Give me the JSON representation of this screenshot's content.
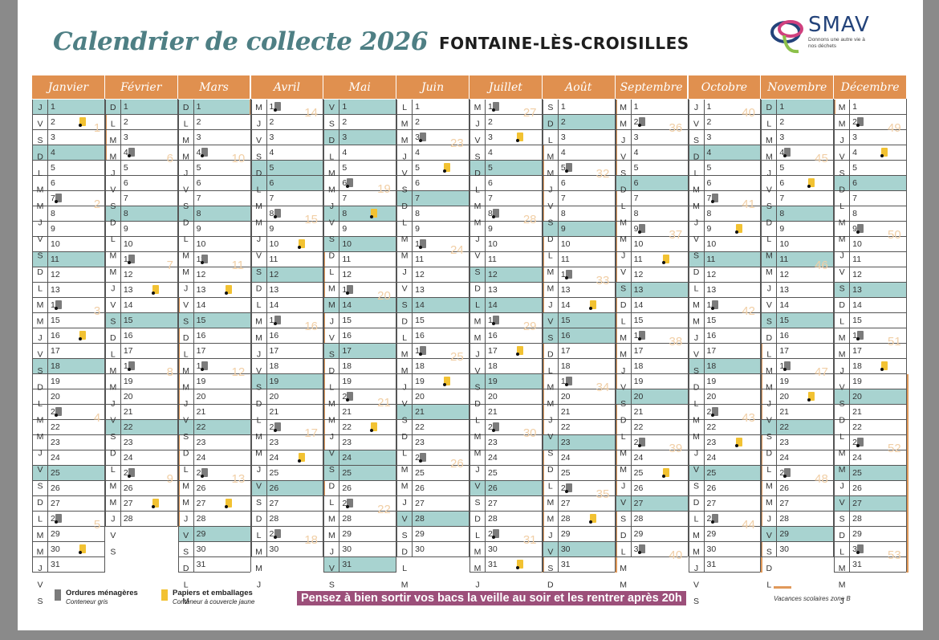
{
  "header": {
    "title": "Calendrier de collecte 2026",
    "town": "FONTAINE-LÈS-CROISILLES"
  },
  "logo": {
    "name": "SMAV",
    "tagline": "Donnons une autre vie à nos déchets"
  },
  "colors": {
    "header": "#e0904f",
    "holiday": "#a8d3d0",
    "vacation": "#e0995a",
    "banner": "#9c4f7a"
  },
  "months": [
    {
      "name": "Janvier",
      "wd": "JVSDLMMJVSDLMMJVSDLMMJVSDLMMJVS",
      "holidays": [
        1
      ],
      "gray": [
        7,
        14,
        21,
        28
      ],
      "yellow": [
        2,
        16,
        30
      ],
      "vac": [
        1,
        2,
        3,
        4
      ],
      "weeks": [
        [
          2,
          1
        ],
        [
          7,
          2
        ],
        [
          14,
          3
        ],
        [
          21,
          4
        ],
        [
          28,
          5
        ]
      ]
    },
    {
      "name": "Février",
      "wd": "DLMMJVSDLMMJVSDLMMJVSDLMMJVS",
      "holidays": [],
      "gray": [
        4,
        11,
        18,
        25
      ],
      "yellow": [
        13,
        27
      ],
      "vac": [
        14,
        15,
        16,
        17,
        18,
        19,
        20,
        21,
        22,
        23,
        24,
        25,
        26,
        27,
        28
      ],
      "weeks": [
        [
          4,
          6
        ],
        [
          11,
          7
        ],
        [
          18,
          8
        ],
        [
          25,
          9
        ]
      ]
    },
    {
      "name": "Mars",
      "wd": "DLMMJVSDLMMJVSDLMMJVSDLMMJVSDLM",
      "holidays": [],
      "gray": [
        4,
        11,
        18,
        25
      ],
      "yellow": [
        13,
        27
      ],
      "vac": [
        1
      ],
      "weeks": [
        [
          4,
          10
        ],
        [
          11,
          11
        ],
        [
          18,
          12
        ],
        [
          25,
          13
        ]
      ]
    },
    {
      "name": "Avril",
      "wd": "MJVSDLMMJVSDLMMJVSDLMMJVSDLMMJ",
      "holidays": [
        6
      ],
      "gray": [
        1,
        8,
        15,
        22,
        29
      ],
      "yellow": [
        10,
        24
      ],
      "vac": [
        11,
        12,
        13,
        14,
        15,
        16,
        17,
        18,
        19,
        20,
        21,
        22,
        23,
        24,
        25,
        26
      ],
      "weeks": [
        [
          1,
          14
        ],
        [
          8,
          15
        ],
        [
          15,
          16
        ],
        [
          22,
          17
        ],
        [
          29,
          18
        ]
      ]
    },
    {
      "name": "Mai",
      "wd": "VSDLMMJVSDLMMJVSDLMMJVSDLMMJVSD",
      "holidays": [
        1,
        8,
        14,
        25
      ],
      "gray": [
        6,
        13,
        20,
        27
      ],
      "yellow": [
        8,
        22
      ],
      "vac": [],
      "weeks": [
        [
          6,
          19
        ],
        [
          13,
          20
        ],
        [
          20,
          21
        ],
        [
          27,
          22
        ]
      ]
    },
    {
      "name": "Juin",
      "wd": "LMMJVSDLMMJVSDLMMJVSDLMMJVSDLM",
      "holidays": [],
      "gray": [
        3,
        10,
        17,
        24
      ],
      "yellow": [
        5,
        19
      ],
      "vac": [],
      "weeks": [
        [
          3,
          23
        ],
        [
          10,
          24
        ],
        [
          17,
          25
        ],
        [
          24,
          26
        ]
      ]
    },
    {
      "name": "Juillet",
      "wd": "MJVSDLMMJVSDLMMJVSDLMMJVSDLMMJV",
      "holidays": [
        14
      ],
      "gray": [
        1,
        8,
        15,
        22,
        29
      ],
      "yellow": [
        3,
        17,
        31
      ],
      "vac": [
        4,
        5,
        6,
        7,
        8,
        9,
        10,
        11,
        12,
        13,
        14,
        15,
        16,
        17,
        18,
        19,
        20,
        21,
        22,
        23,
        24,
        25,
        26,
        27,
        28,
        29,
        30,
        31
      ],
      "weeks": [
        [
          1,
          27
        ],
        [
          8,
          28
        ],
        [
          15,
          29
        ],
        [
          22,
          30
        ],
        [
          29,
          31
        ]
      ]
    },
    {
      "name": "Août",
      "wd": "SDLMMJVSDLMMJVSDLMMJVSDLMMJVSDL",
      "holidays": [
        15
      ],
      "gray": [
        5,
        12,
        19,
        26
      ],
      "yellow": [
        14,
        28
      ],
      "vac": [
        1,
        2,
        3,
        4,
        5,
        6,
        7,
        8,
        9,
        10,
        11,
        12,
        13,
        14,
        15,
        16,
        17,
        18,
        19,
        20,
        21,
        22,
        23,
        24,
        25,
        26,
        27,
        28,
        29,
        30,
        31
      ],
      "weeks": [
        [
          5,
          32
        ],
        [
          12,
          33
        ],
        [
          19,
          34
        ],
        [
          26,
          35
        ]
      ]
    },
    {
      "name": "Septembre",
      "wd": "MMJVSDLMMJVSDLMMJVSDLMMJVSDLMM",
      "holidays": [],
      "gray": [
        2,
        9,
        16,
        23,
        30
      ],
      "yellow": [
        11,
        25
      ],
      "vac": [],
      "weeks": [
        [
          2,
          36
        ],
        [
          9,
          37
        ],
        [
          16,
          38
        ],
        [
          23,
          39
        ],
        [
          30,
          40
        ]
      ]
    },
    {
      "name": "Octobre",
      "wd": "JVSDLMMJVSDLMMJVSDLMMJVSDLMMJVS",
      "holidays": [],
      "gray": [
        7,
        14,
        21,
        28
      ],
      "yellow": [
        9,
        23
      ],
      "vac": [
        17,
        18,
        19,
        20,
        21,
        22,
        23,
        24,
        25,
        26,
        27,
        28,
        29,
        30,
        31
      ],
      "weeks": [
        [
          1,
          40
        ],
        [
          7,
          41
        ],
        [
          14,
          42
        ],
        [
          21,
          43
        ],
        [
          28,
          44
        ]
      ]
    },
    {
      "name": "Novembre",
      "wd": "DLMMJVSDLMMJVSDLMMJVSDLMMJVSDL",
      "holidays": [
        1,
        11
      ],
      "gray": [
        4,
        18,
        25
      ],
      "yellow": [
        6,
        20
      ],
      "vac": [
        1
      ],
      "weeks": [
        [
          4,
          45
        ],
        [
          11,
          46
        ],
        [
          18,
          47
        ],
        [
          25,
          48
        ]
      ]
    },
    {
      "name": "Décembre",
      "wd": "MMJVSDLMMJVSDLMMJVSDLMMJVSDLMMJ",
      "holidays": [
        25
      ],
      "gray": [
        2,
        9,
        16,
        23,
        30
      ],
      "yellow": [
        4,
        18
      ],
      "vac": [
        19,
        20,
        21,
        22,
        23,
        24,
        25,
        26,
        27,
        28,
        29,
        30,
        31
      ],
      "weeks": [
        [
          2,
          49
        ],
        [
          9,
          50
        ],
        [
          16,
          51
        ],
        [
          23,
          52
        ],
        [
          30,
          53
        ]
      ]
    }
  ],
  "legend": {
    "gray": {
      "label": "Ordures ménagères",
      "sub": "Conteneur gris"
    },
    "yellow": {
      "label": "Papiers et emballages",
      "sub": "Conteneur à couvercle jaune"
    },
    "reminder": "Pensez à bien sortir vos bacs la veille au soir et les rentrer après 20h",
    "vacation": "Vacances scolaires zone B"
  }
}
